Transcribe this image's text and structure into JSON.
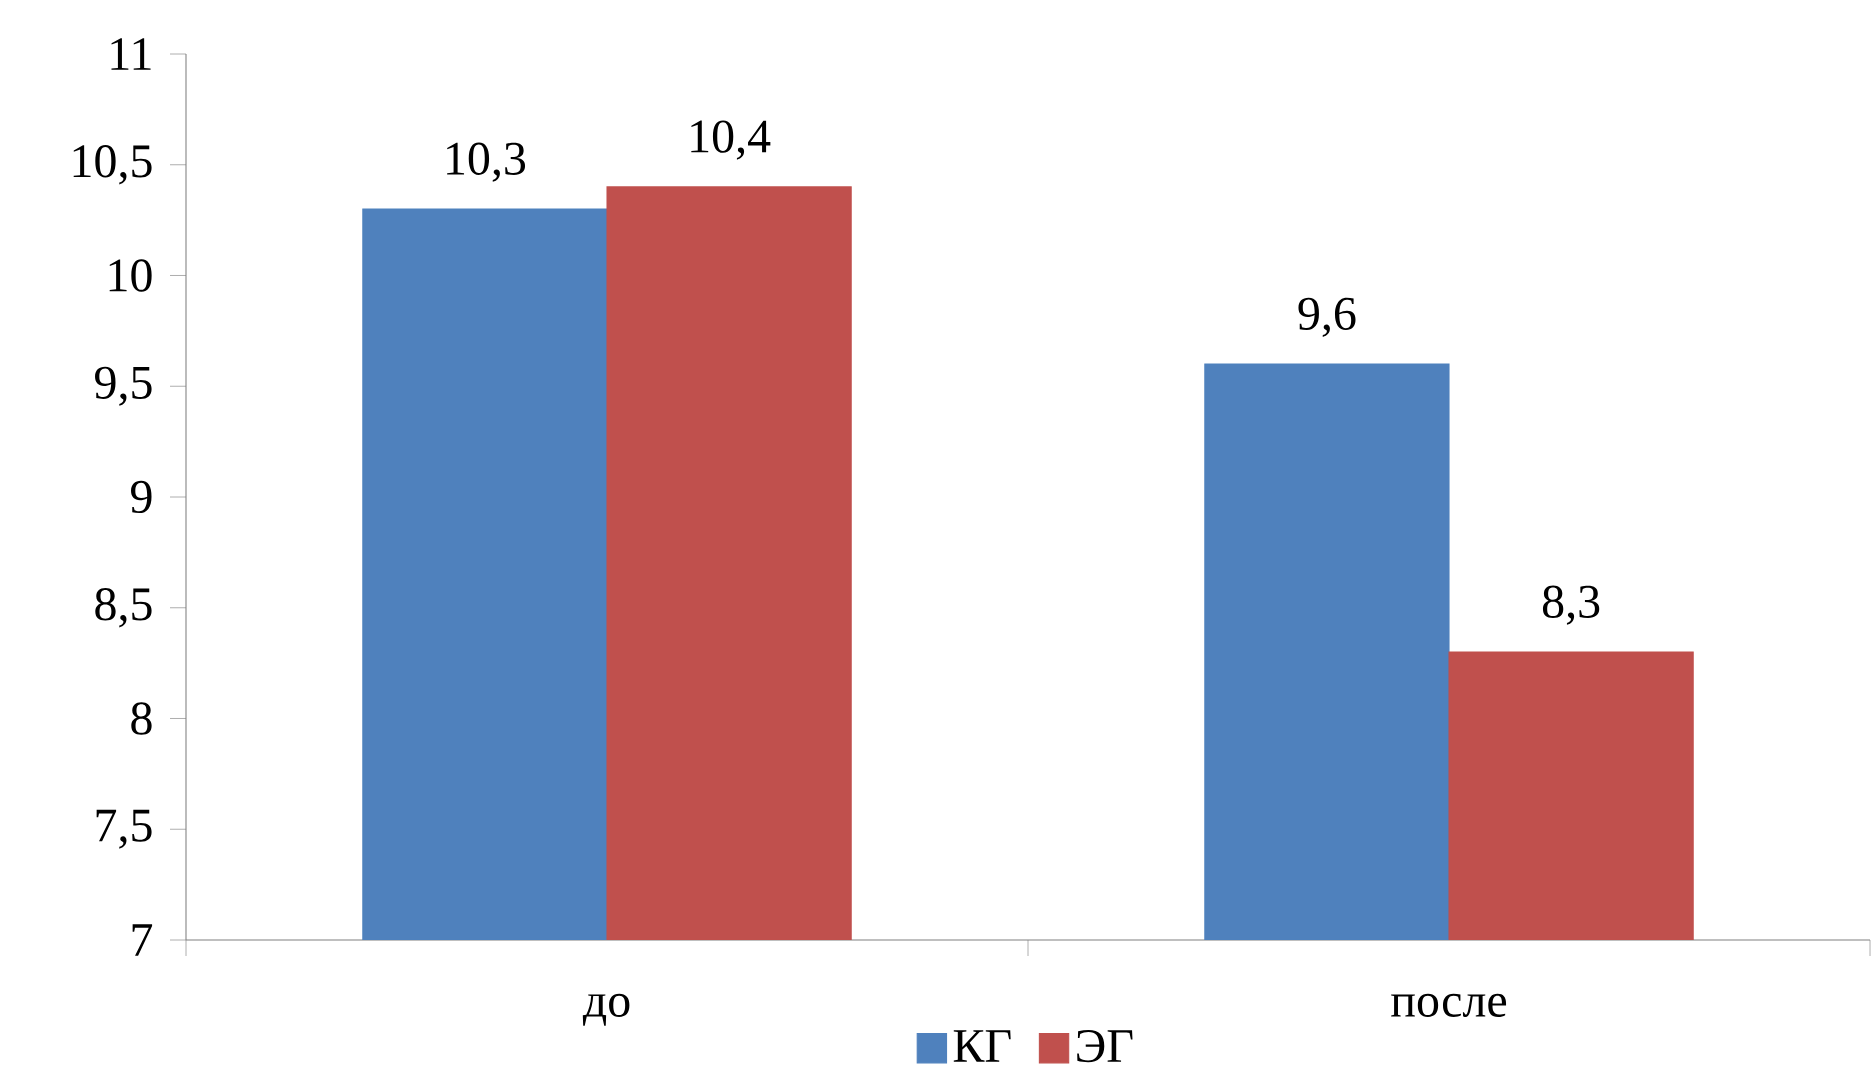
{
  "chart_data": {
    "type": "bar",
    "categories": [
      "до",
      "после"
    ],
    "series": [
      {
        "name": "КГ",
        "color": "#4f81bd",
        "values": [
          10.3,
          9.6
        ],
        "value_labels": [
          "10,3",
          "9,6"
        ]
      },
      {
        "name": "ЭГ",
        "color": "#c0504d",
        "values": [
          10.4,
          8.3
        ],
        "value_labels": [
          "10,4",
          "8,3"
        ]
      }
    ],
    "ylim": [
      7,
      11
    ],
    "yticks": [
      7,
      {
        "value": 7.5,
        "label": "7,5"
      },
      8,
      {
        "value": 8.5,
        "label": "8,5"
      },
      9,
      {
        "value": 9.5,
        "label": "9,5"
      },
      10,
      {
        "value": 10.5,
        "label": "10,5"
      },
      11
    ],
    "grid": false,
    "legend": "bottom"
  }
}
